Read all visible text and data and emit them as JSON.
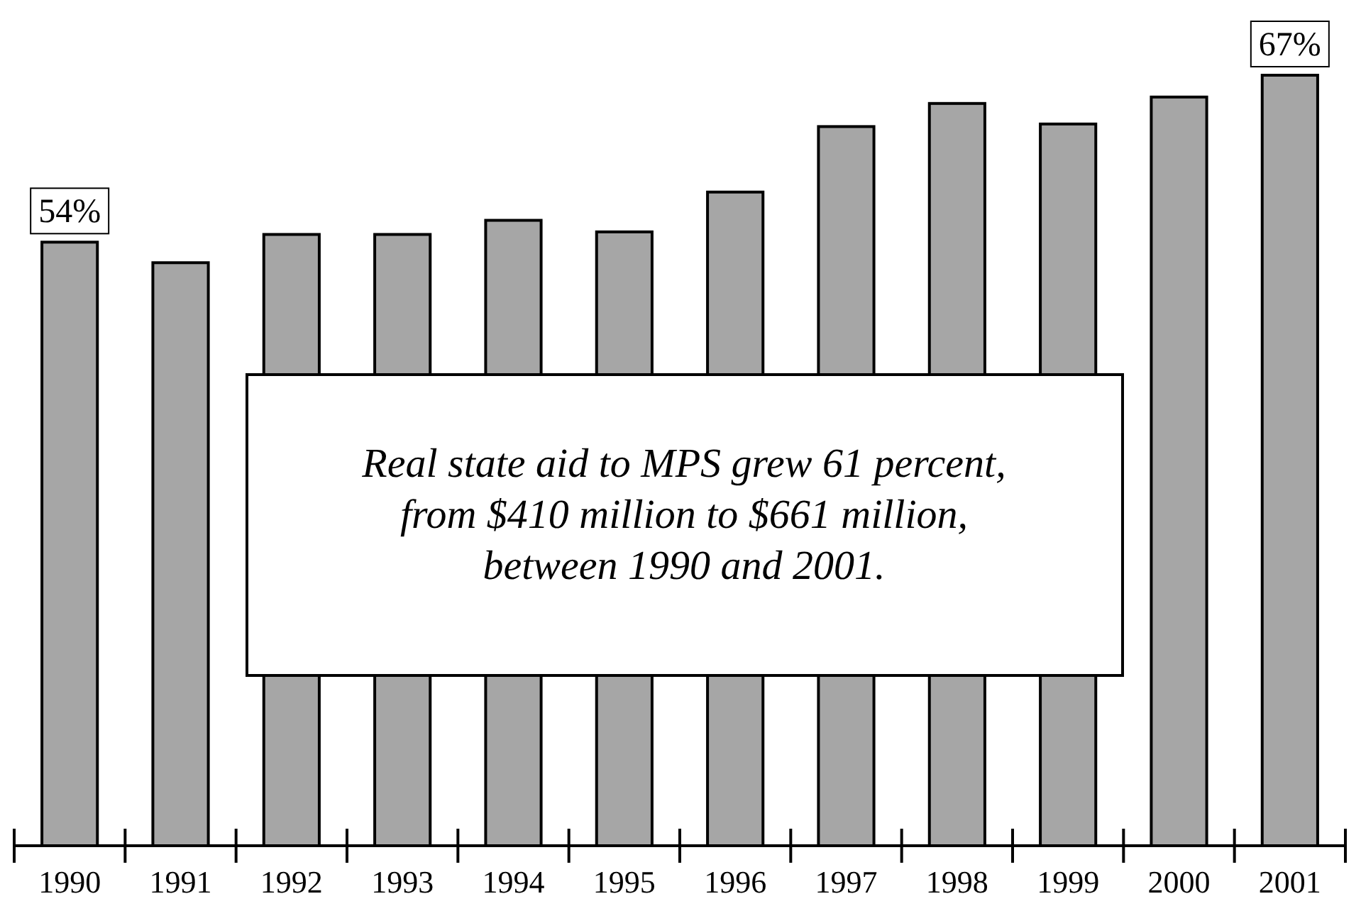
{
  "chart_data": {
    "type": "bar",
    "ylim": [
      7,
      67
    ],
    "tick_labels": "x",
    "categories": [
      "1990",
      "1991",
      "1992",
      "1993",
      "1994",
      "1995",
      "1996",
      "1997",
      "1998",
      "1999",
      "2000",
      "2001"
    ],
    "values": [
      54,
      52.4,
      54.6,
      54.6,
      55.7,
      54.8,
      57.9,
      63,
      64.8,
      63.2,
      65.3,
      67
    ],
    "value_labels": [
      "54%",
      null,
      null,
      null,
      null,
      null,
      null,
      null,
      null,
      null,
      null,
      "67%"
    ],
    "color": "#a6a6a6",
    "annotations": [
      "Real state aid to MPS grew 61 percent,\nfrom $410 million to $661 million,\nbetween 1990 and 2001."
    ]
  }
}
